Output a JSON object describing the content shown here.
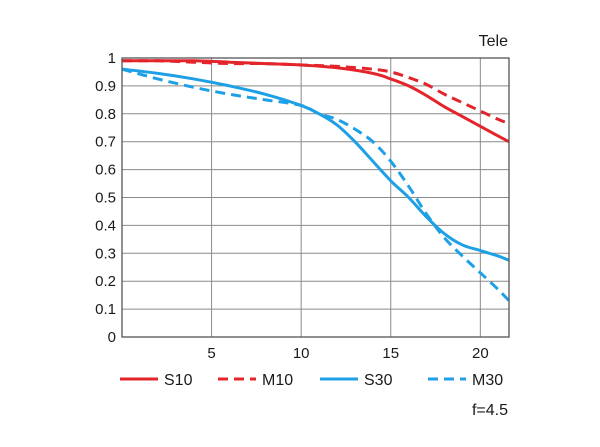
{
  "chart_data": {
    "type": "line",
    "title": "Tele",
    "xlabel": "",
    "ylabel": "",
    "note": "f=4.5",
    "xlim": [
      0,
      21.6
    ],
    "ylim": [
      0,
      1
    ],
    "grid": true,
    "legend_position": "bottom",
    "x_ticks": [
      "5",
      "10",
      "15",
      "20"
    ],
    "x_tick_values": [
      5,
      10,
      15,
      20
    ],
    "y_ticks": [
      "0",
      "0.1",
      "0.2",
      "0.3",
      "0.4",
      "0.5",
      "0.6",
      "0.7",
      "0.8",
      "0.9",
      "1"
    ],
    "y_tick_values": [
      0,
      0.1,
      0.2,
      0.3,
      0.4,
      0.5,
      0.6,
      0.7,
      0.8,
      0.9,
      1
    ],
    "series": [
      {
        "name": "S10",
        "color": "#e3242b",
        "dash": false,
        "x": [
          0,
          2,
          4,
          6,
          8,
          10,
          12,
          14,
          15,
          16,
          17,
          18,
          19,
          20,
          21,
          21.6
        ],
        "y": [
          0.99,
          0.99,
          0.99,
          0.985,
          0.98,
          0.975,
          0.965,
          0.945,
          0.925,
          0.9,
          0.865,
          0.825,
          0.79,
          0.755,
          0.72,
          0.7
        ]
      },
      {
        "name": "M10",
        "color": "#e3242b",
        "dash": true,
        "x": [
          0,
          2,
          4,
          6,
          8,
          10,
          12,
          14,
          15,
          16,
          17,
          18,
          19,
          20,
          21,
          21.6
        ],
        "y": [
          0.99,
          0.99,
          0.985,
          0.98,
          0.98,
          0.975,
          0.97,
          0.96,
          0.95,
          0.93,
          0.905,
          0.87,
          0.84,
          0.81,
          0.78,
          0.765
        ]
      },
      {
        "name": "S30",
        "color": "#1ea0e6",
        "dash": false,
        "x": [
          0,
          2,
          4,
          6,
          8,
          10,
          11,
          12,
          13,
          14,
          15,
          16,
          17,
          18,
          19,
          20,
          21,
          21.6
        ],
        "y": [
          0.96,
          0.945,
          0.925,
          0.9,
          0.87,
          0.83,
          0.8,
          0.76,
          0.7,
          0.63,
          0.56,
          0.5,
          0.43,
          0.37,
          0.33,
          0.31,
          0.29,
          0.275
        ]
      },
      {
        "name": "M30",
        "color": "#1ea0e6",
        "dash": true,
        "x": [
          0,
          2,
          4,
          6,
          8,
          10,
          11,
          12,
          13,
          14,
          15,
          16,
          17,
          18,
          19,
          20,
          21,
          21.6
        ],
        "y": [
          0.96,
          0.925,
          0.895,
          0.87,
          0.85,
          0.83,
          0.8,
          0.78,
          0.745,
          0.7,
          0.63,
          0.54,
          0.44,
          0.355,
          0.29,
          0.23,
          0.17,
          0.13
        ]
      }
    ]
  }
}
